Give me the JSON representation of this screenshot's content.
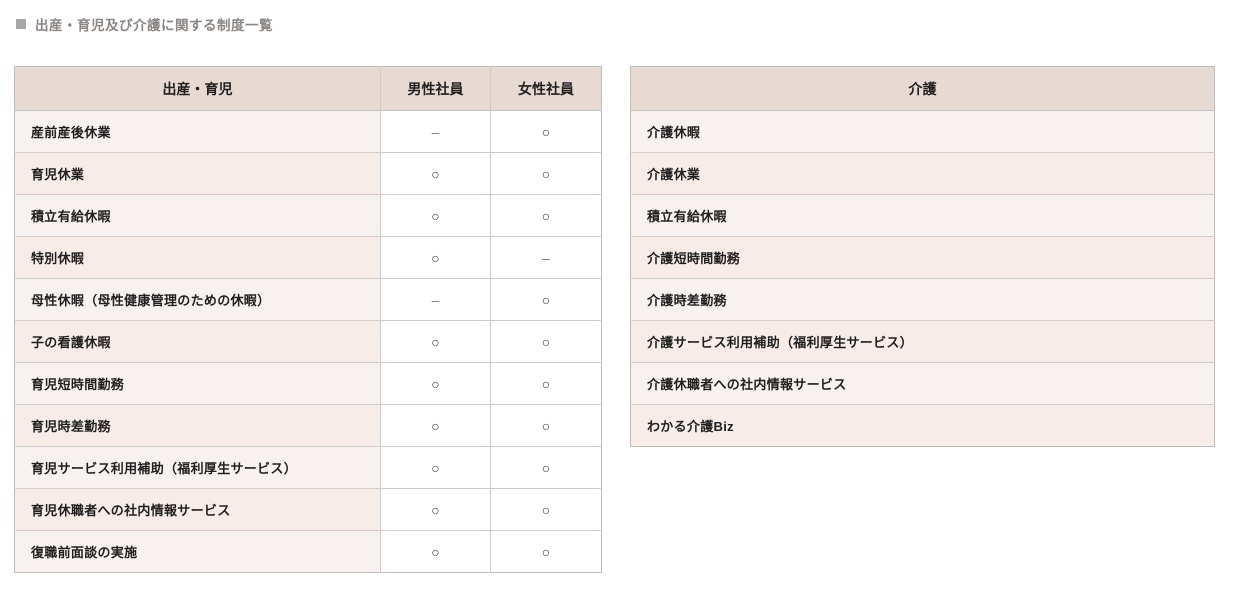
{
  "page": {
    "title": "出産・育児及び介護に関する制度一覧"
  },
  "parental_table": {
    "headers": [
      "出産・育児",
      "男性社員",
      "女性社員"
    ],
    "rows": [
      {
        "label": "産前産後休業",
        "male": "–",
        "female": "○"
      },
      {
        "label": "育児休業",
        "male": "○",
        "female": "○"
      },
      {
        "label": "積立有給休暇",
        "male": "○",
        "female": "○"
      },
      {
        "label": "特別休暇",
        "male": "○",
        "female": "–"
      },
      {
        "label": "母性休暇（母性健康管理のための休暇）",
        "male": "–",
        "female": "○"
      },
      {
        "label": "子の看護休暇",
        "male": "○",
        "female": "○"
      },
      {
        "label": "育児短時間勤務",
        "male": "○",
        "female": "○"
      },
      {
        "label": "育児時差勤務",
        "male": "○",
        "female": "○"
      },
      {
        "label": "育児サービス利用補助（福利厚生サービス）",
        "male": "○",
        "female": "○"
      },
      {
        "label": "育児休職者への社内情報サービス",
        "male": "○",
        "female": "○"
      },
      {
        "label": "復職前面談の実施",
        "male": "○",
        "female": "○"
      }
    ]
  },
  "care_table": {
    "header": "介護",
    "rows": [
      "介護休暇",
      "介護休業",
      "積立有給休暇",
      "介護短時間勤務",
      "介護時差勤務",
      "介護サービス利用補助（福利厚生サービス）",
      "介護休職者への社内情報サービス",
      "わかる介護Biz"
    ]
  },
  "colors": {
    "header_bg": "#e7dad2",
    "row_light_bg": "#f7f2ef",
    "row_pink_bg": "#f8ece8",
    "table_border": "#c1bcbc",
    "title_text": "#8b8683"
  }
}
